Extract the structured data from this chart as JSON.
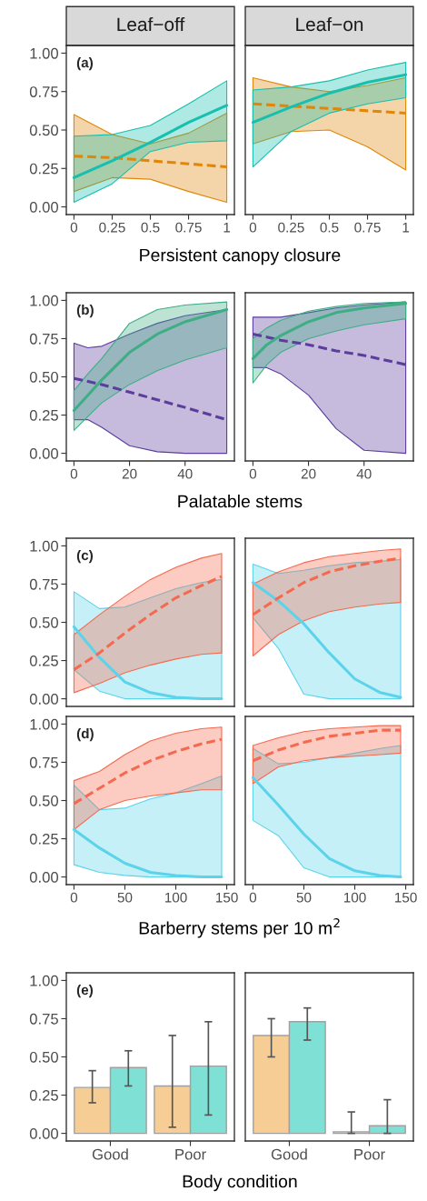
{
  "chart_data": [
    {
      "type": "line",
      "title": "Leaf−off",
      "xlabel": "Persistent canopy closure",
      "annotations": [
        "(a)"
      ],
      "xlim": [
        -0.05,
        1.05
      ],
      "xticks": [
        0,
        0.25,
        0.5,
        0.75,
        1
      ],
      "ylim": [
        -0.05,
        1.05
      ],
      "yticks": [
        {
          "value": 0,
          "label": "0.00"
        },
        {
          "value": 0.25,
          "label": "0.25"
        },
        {
          "value": 0.5,
          "label": "0.50"
        },
        {
          "value": 0.75,
          "label": "0.75"
        },
        {
          "value": 1,
          "label": "1.00"
        }
      ],
      "series": [
        {
          "color": "#e0870a",
          "line_style": "dashed",
          "x": [
            0,
            0.25,
            0.5,
            0.75,
            1
          ],
          "values": [
            0.33,
            0.32,
            0.3,
            0.28,
            0.26
          ],
          "lower": [
            0.1,
            0.19,
            0.18,
            0.1,
            0.03
          ],
          "upper": [
            0.6,
            0.47,
            0.41,
            0.48,
            0.61
          ]
        },
        {
          "color": "#17bfae",
          "line_style": "solid",
          "x": [
            0,
            0.25,
            0.5,
            0.75,
            1
          ],
          "values": [
            0.19,
            0.3,
            0.42,
            0.55,
            0.66
          ],
          "lower": [
            0.03,
            0.15,
            0.36,
            0.42,
            0.43
          ],
          "upper": [
            0.46,
            0.47,
            0.53,
            0.67,
            0.82
          ]
        }
      ]
    },
    {
      "type": "line",
      "title": "Leaf−on",
      "tick_labels": "x",
      "xlim": [
        -0.05,
        1.05
      ],
      "xticks": [
        0,
        0.25,
        0.5,
        0.75,
        1
      ],
      "ylim": [
        -0.05,
        1.05
      ],
      "series": [
        {
          "color": "#e0870a",
          "line_style": "dashed",
          "x": [
            0,
            0.25,
            0.5,
            0.75,
            1
          ],
          "values": [
            0.67,
            0.655,
            0.64,
            0.625,
            0.61
          ],
          "lower": [
            0.41,
            0.49,
            0.5,
            0.39,
            0.24
          ],
          "upper": [
            0.84,
            0.78,
            0.75,
            0.79,
            0.84
          ]
        },
        {
          "color": "#17bfae",
          "line_style": "solid",
          "x": [
            0,
            0.25,
            0.5,
            0.75,
            1
          ],
          "values": [
            0.55,
            0.65,
            0.74,
            0.81,
            0.86
          ],
          "lower": [
            0.26,
            0.49,
            0.61,
            0.67,
            0.71
          ],
          "upper": [
            0.76,
            0.78,
            0.82,
            0.89,
            0.94
          ]
        }
      ]
    },
    {
      "type": "line",
      "xlabel": "Palatable stems",
      "annotations": [
        "(b)"
      ],
      "xlim": [
        -2.75,
        57.75
      ],
      "xticks": [
        0,
        20,
        40
      ],
      "ylim": [
        -0.05,
        1.05
      ],
      "yticks": [
        {
          "value": 0,
          "label": "0.00"
        },
        {
          "value": 0.25,
          "label": "0.25"
        },
        {
          "value": 0.5,
          "label": "0.50"
        },
        {
          "value": 0.75,
          "label": "0.75"
        },
        {
          "value": 1,
          "label": "1.00"
        }
      ],
      "series": [
        {
          "color": "#5b3d9e",
          "line_style": "dashed",
          "x": [
            0,
            5,
            10,
            20,
            30,
            40,
            55
          ],
          "values": [
            0.49,
            0.47,
            0.45,
            0.4,
            0.35,
            0.3,
            0.22
          ],
          "lower": [
            0.22,
            0.22,
            0.17,
            0.05,
            0.01,
            0.0,
            0.0
          ],
          "upper": [
            0.72,
            0.69,
            0.7,
            0.78,
            0.85,
            0.9,
            0.94
          ]
        },
        {
          "color": "#3fae85",
          "line_style": "solid",
          "x": [
            0,
            5,
            10,
            20,
            30,
            40,
            55
          ],
          "values": [
            0.28,
            0.38,
            0.48,
            0.66,
            0.78,
            0.86,
            0.94
          ],
          "lower": [
            0.15,
            0.24,
            0.33,
            0.45,
            0.54,
            0.61,
            0.69
          ],
          "upper": [
            0.41,
            0.52,
            0.62,
            0.85,
            0.94,
            0.97,
            0.99
          ]
        }
      ]
    },
    {
      "type": "line",
      "tick_labels": "x",
      "xlim": [
        -2.75,
        57.75
      ],
      "xticks": [
        0,
        20,
        40
      ],
      "ylim": [
        -0.05,
        1.05
      ],
      "series": [
        {
          "color": "#5b3d9e",
          "line_style": "dashed",
          "x": [
            0,
            5,
            10,
            20,
            30,
            40,
            55
          ],
          "values": [
            0.78,
            0.76,
            0.74,
            0.71,
            0.67,
            0.64,
            0.58
          ],
          "lower": [
            0.56,
            0.56,
            0.52,
            0.38,
            0.16,
            0.02,
            0.0
          ],
          "upper": [
            0.89,
            0.89,
            0.89,
            0.92,
            0.95,
            0.97,
            0.99
          ]
        },
        {
          "color": "#3fae85",
          "line_style": "solid",
          "x": [
            0,
            5,
            10,
            20,
            30,
            40,
            55
          ],
          "values": [
            0.62,
            0.71,
            0.77,
            0.86,
            0.92,
            0.95,
            0.98
          ],
          "lower": [
            0.46,
            0.58,
            0.66,
            0.75,
            0.8,
            0.84,
            0.88
          ],
          "upper": [
            0.75,
            0.82,
            0.87,
            0.93,
            0.96,
            0.98,
            0.99
          ]
        }
      ]
    },
    {
      "type": "line",
      "tick_labels": "y",
      "annotations": [
        "(c)"
      ],
      "xlim": [
        -7.5,
        157.5
      ],
      "ylim": [
        -0.05,
        1.05
      ],
      "yticks": [
        {
          "value": 0,
          "label": "0.00"
        },
        {
          "value": 0.25,
          "label": "0.25"
        },
        {
          "value": 0.5,
          "label": "0.50"
        },
        {
          "value": 0.75,
          "label": "0.75"
        },
        {
          "value": 1,
          "label": "1.00"
        }
      ],
      "series": [
        {
          "color": "#5bd3ea",
          "line_style": "solid",
          "x": [
            0,
            25,
            50,
            75,
            100,
            125,
            145
          ],
          "values": [
            0.47,
            0.27,
            0.11,
            0.04,
            0.01,
            0.0,
            0.0
          ],
          "lower": [
            0.19,
            0.05,
            0.0,
            0.0,
            0.0,
            0.0,
            0.0
          ],
          "upper": [
            0.7,
            0.59,
            0.6,
            0.66,
            0.72,
            0.76,
            0.78
          ]
        },
        {
          "color": "#f56a4f",
          "line_style": "dashed",
          "x": [
            0,
            25,
            50,
            75,
            100,
            125,
            145
          ],
          "values": [
            0.19,
            0.3,
            0.43,
            0.55,
            0.66,
            0.74,
            0.8
          ],
          "lower": [
            0.04,
            0.1,
            0.17,
            0.22,
            0.26,
            0.29,
            0.3
          ],
          "upper": [
            0.42,
            0.55,
            0.67,
            0.78,
            0.86,
            0.92,
            0.95
          ]
        }
      ]
    },
    {
      "type": "line",
      "tick_labels": false,
      "xlim": [
        -7.5,
        157.5
      ],
      "ylim": [
        -0.05,
        1.05
      ],
      "series": [
        {
          "color": "#5bd3ea",
          "line_style": "solid",
          "x": [
            0,
            25,
            50,
            75,
            100,
            125,
            145
          ],
          "values": [
            0.76,
            0.64,
            0.49,
            0.3,
            0.13,
            0.04,
            0.01
          ],
          "lower": [
            0.53,
            0.33,
            0.03,
            0.0,
            0.0,
            0.0,
            0.0
          ],
          "upper": [
            0.88,
            0.82,
            0.84,
            0.87,
            0.89,
            0.9,
            0.91
          ]
        },
        {
          "color": "#f56a4f",
          "line_style": "dashed",
          "x": [
            0,
            25,
            50,
            75,
            100,
            125,
            145
          ],
          "values": [
            0.55,
            0.66,
            0.76,
            0.83,
            0.87,
            0.9,
            0.92
          ],
          "lower": [
            0.28,
            0.42,
            0.51,
            0.57,
            0.6,
            0.62,
            0.63
          ],
          "upper": [
            0.75,
            0.83,
            0.89,
            0.93,
            0.95,
            0.97,
            0.98
          ]
        }
      ]
    },
    {
      "type": "line",
      "xlabel": "Barberry stems per 10 m$^{2}$",
      "annotations": [
        "(d)"
      ],
      "xlim": [
        -7.5,
        157.5
      ],
      "xticks": [
        0,
        50,
        100,
        150
      ],
      "ylim": [
        -0.05,
        1.05
      ],
      "yticks": [
        {
          "value": 0,
          "label": "0.00"
        },
        {
          "value": 0.25,
          "label": "0.25"
        },
        {
          "value": 0.5,
          "label": "0.50"
        },
        {
          "value": 0.75,
          "label": "0.75"
        },
        {
          "value": 1,
          "label": "1.00"
        }
      ],
      "series": [
        {
          "color": "#5bd3ea",
          "line_style": "solid",
          "x": [
            0,
            25,
            50,
            75,
            100,
            125,
            145
          ],
          "values": [
            0.31,
            0.19,
            0.09,
            0.03,
            0.01,
            0.0,
            0.0
          ],
          "lower": [
            0.08,
            0.03,
            0.01,
            0.0,
            0.0,
            0.0,
            0.0
          ],
          "upper": [
            0.6,
            0.44,
            0.45,
            0.51,
            0.55,
            0.61,
            0.66
          ]
        },
        {
          "color": "#f56a4f",
          "line_style": "dashed",
          "x": [
            0,
            25,
            50,
            75,
            100,
            125,
            145
          ],
          "values": [
            0.48,
            0.58,
            0.68,
            0.76,
            0.82,
            0.87,
            0.9
          ],
          "lower": [
            0.31,
            0.44,
            0.5,
            0.53,
            0.55,
            0.57,
            0.57
          ],
          "upper": [
            0.63,
            0.69,
            0.8,
            0.89,
            0.94,
            0.97,
            0.98
          ]
        }
      ]
    },
    {
      "type": "line",
      "tick_labels": "x",
      "xlim": [
        -7.5,
        157.5
      ],
      "xticks": [
        0,
        50,
        100,
        150
      ],
      "ylim": [
        -0.05,
        1.05
      ],
      "series": [
        {
          "color": "#5bd3ea",
          "line_style": "solid",
          "x": [
            0,
            25,
            50,
            75,
            100,
            125,
            145
          ],
          "values": [
            0.65,
            0.47,
            0.28,
            0.12,
            0.04,
            0.01,
            0.0
          ],
          "lower": [
            0.37,
            0.27,
            0.06,
            0.0,
            0.0,
            0.0,
            0.0
          ],
          "upper": [
            0.84,
            0.74,
            0.75,
            0.78,
            0.81,
            0.84,
            0.86
          ]
        },
        {
          "color": "#f56a4f",
          "line_style": "dashed",
          "x": [
            0,
            25,
            50,
            75,
            100,
            125,
            145
          ],
          "values": [
            0.76,
            0.83,
            0.88,
            0.92,
            0.94,
            0.96,
            0.96
          ],
          "lower": [
            0.61,
            0.72,
            0.76,
            0.78,
            0.79,
            0.8,
            0.81
          ],
          "upper": [
            0.86,
            0.91,
            0.95,
            0.97,
            0.98,
            0.99,
            0.99
          ]
        }
      ]
    },
    {
      "type": "bar",
      "xlabel": "Body condition",
      "annotations": [
        "(e)"
      ],
      "categories": [
        "Good",
        "Poor"
      ],
      "ylim": [
        -0.05,
        1.05
      ],
      "yticks": [
        {
          "value": 0,
          "label": "0.00"
        },
        {
          "value": 0.25,
          "label": "0.25"
        },
        {
          "value": 0.5,
          "label": "0.50"
        },
        {
          "value": 0.75,
          "label": "0.75"
        },
        {
          "value": 1,
          "label": "1.00"
        }
      ],
      "series": [
        {
          "color": "#f5cd95",
          "values": [
            0.3,
            0.31
          ],
          "errors": [
            [
              0.2,
              0.41
            ],
            [
              0.04,
              0.64
            ]
          ]
        },
        {
          "color": "#7fe0d6",
          "values": [
            0.43,
            0.44
          ],
          "errors": [
            [
              0.31,
              0.54
            ],
            [
              0.12,
              0.73
            ]
          ]
        }
      ]
    },
    {
      "type": "bar",
      "tick_labels": "x",
      "categories": [
        "Good",
        "Poor"
      ],
      "ylim": [
        -0.05,
        1.05
      ],
      "series": [
        {
          "color": "#f5cd95",
          "values": [
            0.64,
            0.01
          ],
          "errors": [
            [
              0.5,
              0.75
            ],
            [
              0.0,
              0.14
            ]
          ]
        },
        {
          "color": "#7fe0d6",
          "values": [
            0.73,
            0.05
          ],
          "errors": [
            [
              0.61,
              0.82
            ],
            [
              0.0,
              0.22
            ]
          ]
        }
      ]
    }
  ]
}
